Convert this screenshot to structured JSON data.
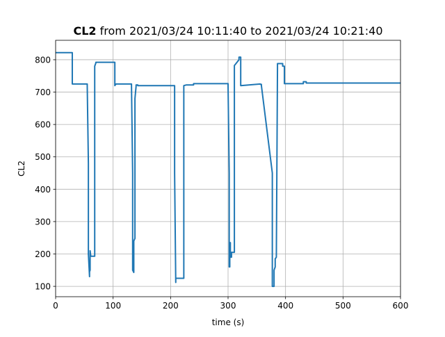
{
  "chart_data": {
    "type": "line",
    "title_bold": "CL2",
    "title_rest": " from 2021/03/24 10:11:40 to 2021/03/24 10:21:40",
    "xlabel": "time (s)",
    "ylabel": "CL2",
    "xlim": [
      0,
      600
    ],
    "ylim": [
      68,
      860
    ],
    "xticks": [
      0,
      100,
      200,
      300,
      400,
      500,
      600
    ],
    "yticks": [
      100,
      200,
      300,
      400,
      500,
      600,
      700,
      800
    ],
    "grid": true,
    "series": [
      {
        "color": "#1f77b4",
        "x": [
          0,
          29,
          29,
          55,
          55,
          57,
          57,
          59,
          59,
          60,
          60,
          61,
          61,
          68,
          68,
          70,
          70,
          103,
          103,
          105,
          105,
          132,
          132,
          134,
          134,
          136,
          136,
          138,
          138,
          140,
          140,
          143,
          143,
          207,
          207,
          209,
          209,
          223,
          223,
          227,
          227,
          240,
          240,
          300,
          300,
          302,
          302,
          303,
          303,
          304,
          304,
          306,
          306,
          311,
          311,
          319,
          319,
          322,
          322,
          356,
          356,
          358,
          358,
          377,
          377,
          380,
          380,
          382,
          382,
          384,
          384,
          386,
          386,
          395,
          395,
          398,
          398,
          431,
          431,
          436,
          436,
          600
        ],
        "y": [
          822,
          822,
          725,
          725,
          718,
          480,
          200,
          130,
          145,
          150,
          210,
          195,
          193,
          193,
          780,
          790,
          792,
          792,
          720,
          725,
          725,
          725,
          720,
          450,
          150,
          143,
          240,
          248,
          680,
          718,
          722,
          722,
          720,
          720,
          450,
          112,
          125,
          125,
          720,
          722,
          722,
          722,
          726,
          726,
          720,
          450,
          160,
          160,
          230,
          235,
          190,
          190,
          205,
          205,
          782,
          800,
          808,
          808,
          720,
          725,
          724,
          724,
          720,
          450,
          100,
          100,
          150,
          160,
          185,
          190,
          190,
          780,
          788,
          788,
          780,
          780,
          726,
          726,
          732,
          732,
          728,
          728
        ]
      }
    ]
  }
}
